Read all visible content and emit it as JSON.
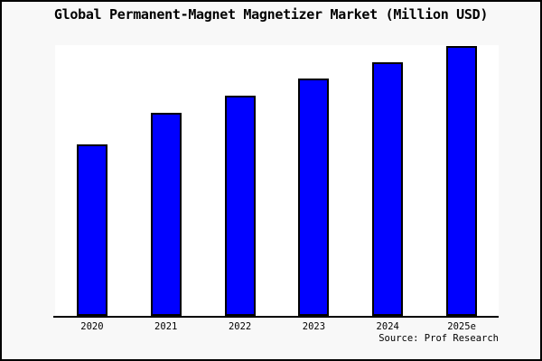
{
  "window": {
    "background_color": "#f8f8f8",
    "border_color": "#000000",
    "plot_background_color": "#ffffff"
  },
  "chart_data": {
    "type": "bar",
    "title": "Global Permanent-Magnet Magnetizer Market (Million USD)",
    "categories": [
      "2020",
      "2021",
      "2022",
      "2023",
      "2024",
      "2025e"
    ],
    "values": [
      63.5,
      75.3,
      81.6,
      88.0,
      94.0,
      100.0
    ],
    "values_note": "No y-axis ticks or value labels are shown in the chart; values are relative bar heights with the tallest bar (2025e) normalized to 100",
    "xlabel": "",
    "ylabel": "",
    "ylim": [
      0,
      100.3
    ],
    "y_axis_visible": false,
    "gridlines": false,
    "legend_position": "none",
    "bar_color": "#0000ff",
    "bar_border_color": "#000000",
    "axis_line_color": "#000000"
  },
  "source": {
    "label": "Source: Prof Research"
  }
}
